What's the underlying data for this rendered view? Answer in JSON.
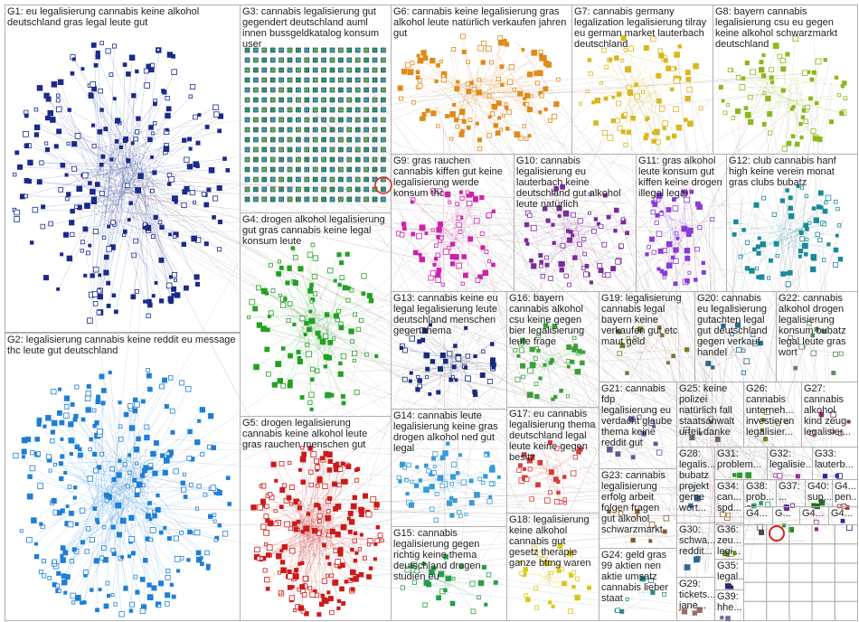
{
  "groups": [
    {
      "label": "G1: eu legalisierung cannabis keine alkohol deutschland gras legal leute gut"
    },
    {
      "label": "G2: legalisierung cannabis keine reddit eu message thc leute gut deutschland"
    },
    {
      "label": "G3: cannabis legalisierung gut gegendert deutschland auml innen bussgeldkatalog konsum user"
    },
    {
      "label": "G4: drogen alkohol legalisierung gut gras cannabis keine legal konsum leute"
    },
    {
      "label": "G5: drogen legalisierung cannabis keine alkohol leute gras rauchen menschen gut"
    },
    {
      "label": "G6: cannabis keine legalisierung gras alkohol leute natürlich verkaufen jahren gut"
    },
    {
      "label": "G7: cannabis germany legalization legalisierung tilray eu german market lauterbach deutschland"
    },
    {
      "label": "G8: bayern cannabis legalisierung csu eu gegen keine alkohol schwarzmarkt deutschland"
    },
    {
      "label": "G9: gras rauchen cannabis kiffen gut keine legalisierung werde konsum thc"
    },
    {
      "label": "G10: cannabis legalisierung eu lauterbach keine deutschland gut alkohol leute natürlich"
    },
    {
      "label": "G11: gras alkohol leute konsum gut kiffen keine drogen illegal legal"
    },
    {
      "label": "G12: club cannabis hanf high keine verein monat gras clubs bubatz"
    },
    {
      "label": "G13: cannabis keine eu legal legalisierung leute deutschland menschen gegen thema"
    },
    {
      "label": "G14: cannabis leute legalisierung keine gras drogen alkohol ned gut legal"
    },
    {
      "label": "G15: cannabis legalisierung gegen richtig keine thema deutschland drogen studien eu"
    },
    {
      "label": "G16: bayern cannabis alkohol csu keine gegen bier legalisierung leute frage"
    },
    {
      "label": "G17: eu cannabis legalisierung thema deutschland legal leute keine gegen besitz"
    },
    {
      "label": "G18: legalisierung keine alkohol cannabis gut gesetz therapie ganze btmg waren"
    },
    {
      "label": "G19: legalisierung cannabis legal bayern keine verkaufen gut etc maut geld"
    },
    {
      "label": "G20: cannabis eu legalisierung gutachten legal gut deutschland gegen verkauf handel"
    },
    {
      "label": "G21: cannabis fdp legalisierung eu verdacht glaube thema keine reddit gut"
    },
    {
      "label": "G22: cannabis alkohol drogen legalisierung konsum bubatz legal leute gras wort"
    },
    {
      "label": "G23: cannabis legalisierung erfolg arbeit folgen fragen gut alkohol schwarzmarkt"
    },
    {
      "label": "G24: geld gras 99 aktien nen aktie umsatz cannabis lieber staat"
    },
    {
      "label": "G25: keine polizei natürlich fall staatsanwalt urteil danke"
    },
    {
      "label": "G26: cannabis unterneh... investieren legalisier..."
    },
    {
      "label": "G27: cannabis alkohol kind zeug legalisier..."
    },
    {
      "label": "G28: legalis... bubatz projekt gerne wort..."
    },
    {
      "label": "G31: problem..."
    },
    {
      "label": "G32: legalisie..."
    },
    {
      "label": "G33: lauterb..."
    },
    {
      "label": "G34: can... spd..."
    },
    {
      "label": "G38: prob... gr..."
    },
    {
      "label": "G37: ..."
    },
    {
      "label": "G40: sup..."
    },
    {
      "label": "G4... pen..."
    },
    {
      "label": "G30: schwa... reddit..."
    },
    {
      "label": "G36: zeu... legi..."
    },
    {
      "label": "G35: legal..."
    },
    {
      "label": "G29: tickets... jane..."
    },
    {
      "label": "G39: hhe..."
    },
    {
      "label": "G4..."
    },
    {
      "label": "G..."
    },
    {
      "label": "G4..."
    },
    {
      "label": "G4..."
    }
  ]
}
